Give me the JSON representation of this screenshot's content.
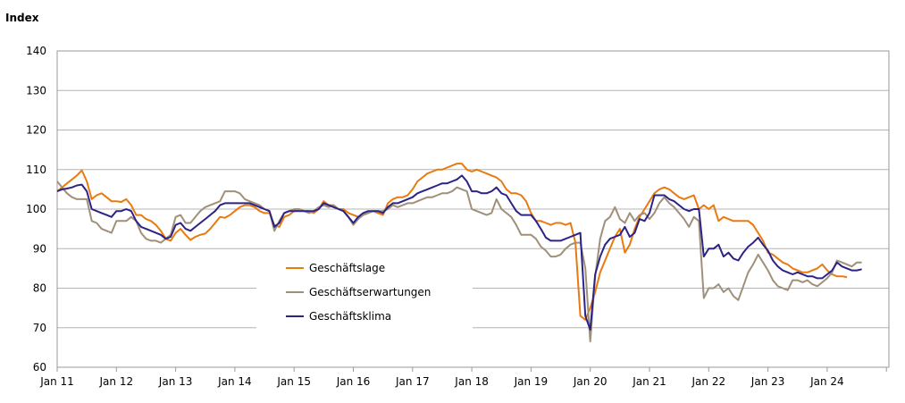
{
  "chart_data": {
    "type": "line",
    "unit_label": "Index",
    "ylim": [
      60,
      140
    ],
    "yticks": [
      60,
      70,
      80,
      90,
      100,
      110,
      120,
      130,
      140
    ],
    "x_tick_labels": [
      "Jan 11",
      "Jan 12",
      "Jan 13",
      "Jan 14",
      "Jan 15",
      "Jan 16",
      "Jan 17",
      "Jan 18",
      "Jan 19",
      "Jan 20",
      "Jan 21",
      "Jan 22",
      "Jan 23",
      "Jan 24"
    ],
    "x_start": "2011-01",
    "grid": true,
    "legend_position": "bottom-left",
    "series": [
      {
        "name": "Geschäftslage",
        "color": "#e97a10",
        "values": [
          104.5,
          105.5,
          106.5,
          107.5,
          108.5,
          109.8,
          107,
          102.5,
          103.5,
          104,
          103,
          102,
          102,
          101.8,
          102.5,
          101,
          98.5,
          98.5,
          97.5,
          97,
          96,
          94.5,
          92.5,
          92,
          94,
          95,
          93.5,
          92.2,
          93,
          93.5,
          93.8,
          95,
          96.5,
          98,
          97.8,
          98.5,
          99.5,
          100.5,
          101,
          101,
          100.5,
          99.5,
          99,
          99,
          96,
          95.5,
          98,
          98.5,
          99.5,
          100,
          99.5,
          99.5,
          99,
          100,
          102,
          101,
          101,
          100,
          100,
          99,
          98.5,
          98,
          98.5,
          99,
          99.5,
          99,
          98.5,
          101.5,
          102.5,
          103,
          103,
          103.5,
          105,
          107,
          108,
          109,
          109.5,
          110,
          110,
          110.5,
          111,
          111.5,
          111.5,
          110,
          109.5,
          110,
          109.5,
          109,
          108.5,
          108,
          107,
          105,
          104,
          104,
          103.5,
          102,
          99,
          97,
          97,
          96.5,
          96,
          96.5,
          96.5,
          96,
          96.5,
          91.5,
          73,
          72,
          75,
          79,
          84,
          87,
          90,
          93,
          95,
          89,
          91,
          95,
          98,
          100,
          102,
          104,
          105,
          105.5,
          105,
          104,
          103,
          102.5,
          103,
          103.5,
          100,
          101,
          100,
          101,
          97,
          98,
          97.5,
          97,
          97,
          97,
          97,
          96,
          94,
          92,
          89,
          88.5,
          87.5,
          86.5,
          86,
          85,
          84.5,
          84,
          84,
          84.5,
          85,
          86,
          84.5,
          83.5,
          83,
          83,
          82.8
        ]
      },
      {
        "name": "Geschäftserwartungen",
        "color": "#a09079",
        "values": [
          107,
          105.5,
          104,
          103,
          102.5,
          102.5,
          102.5,
          97,
          96.5,
          95,
          94.5,
          94,
          97,
          97,
          97,
          98,
          97,
          94,
          92.5,
          92,
          92,
          91.5,
          92.5,
          93.5,
          98,
          98.5,
          96.5,
          96.5,
          98,
          99.5,
          100.5,
          101,
          101.5,
          102,
          104.5,
          104.5,
          104.5,
          104,
          102.5,
          102,
          101.5,
          101,
          100,
          99.5,
          94.5,
          97,
          99,
          99.5,
          100,
          100,
          99.5,
          99,
          99.5,
          100.5,
          101,
          100.5,
          101,
          100,
          99.5,
          98,
          96,
          97.5,
          98.5,
          99,
          99.5,
          99.5,
          99.5,
          100,
          101,
          100.5,
          101,
          101.5,
          101.5,
          102,
          102.5,
          103,
          103,
          103.5,
          104,
          104,
          104.5,
          105.5,
          105,
          104.5,
          100,
          99.5,
          99,
          98.5,
          99,
          102.5,
          100,
          99,
          98,
          96,
          93.5,
          93.5,
          93.5,
          92.5,
          90.5,
          89.5,
          88,
          88,
          88.5,
          90,
          91,
          91.5,
          91.5,
          85,
          66.5,
          83,
          92.5,
          97,
          98,
          100.5,
          97.5,
          96.5,
          99,
          97,
          98.5,
          99,
          97.5,
          99,
          101.5,
          103,
          101.5,
          100.5,
          99,
          97.5,
          95.5,
          98,
          97,
          77.5,
          80,
          80,
          81,
          79,
          80,
          78,
          77,
          80.5,
          84,
          86,
          88.5,
          86.5,
          84.5,
          82,
          80.5,
          80,
          79.5,
          82,
          82,
          81.5,
          82,
          81,
          80.5,
          81.5,
          82.5,
          84,
          87,
          86.5,
          86,
          85.5,
          86.5,
          86.5
        ]
      },
      {
        "name": "Geschäftsklima",
        "color": "#2c2387",
        "values": [
          104.5,
          105,
          105.2,
          105.5,
          106,
          106.2,
          104.5,
          100,
          99.5,
          99,
          98.5,
          98,
          99.5,
          99.5,
          100,
          99.5,
          97,
          95.5,
          95,
          94.5,
          94,
          93.5,
          92.5,
          93,
          96,
          96.5,
          95,
          94.5,
          95.5,
          96.5,
          97.5,
          98.5,
          99.5,
          101,
          101.5,
          101.5,
          101.5,
          101.5,
          101.5,
          101.5,
          101,
          100.5,
          100,
          99.5,
          95.5,
          96.5,
          99,
          99.5,
          99.5,
          99.5,
          99.5,
          99.5,
          99.5,
          100,
          101.5,
          101,
          100.5,
          100,
          99.5,
          98,
          96.5,
          98,
          99,
          99.5,
          99.5,
          99.5,
          99,
          100.5,
          101.5,
          101.5,
          102,
          102.5,
          103,
          104,
          104.5,
          105,
          105.5,
          106,
          106.5,
          106.5,
          107,
          107.5,
          108.5,
          107,
          104.5,
          104.5,
          104,
          104,
          104.5,
          105.5,
          104,
          103.5,
          101.5,
          99.5,
          98.5,
          98.5,
          98.5,
          97,
          95,
          92.8,
          92,
          92,
          92,
          92.5,
          93,
          93.5,
          94,
          73,
          69.5,
          83.5,
          88,
          91,
          92.5,
          93,
          93.5,
          95.5,
          93,
          94,
          97.5,
          97,
          99,
          103.5,
          103.5,
          103.5,
          102.5,
          102,
          101,
          100,
          99.5,
          100,
          100,
          88,
          90,
          90,
          91,
          88,
          89,
          87.5,
          87,
          89,
          90.5,
          91.5,
          92.8,
          91,
          89.5,
          87,
          85.5,
          84.5,
          84,
          83.5,
          84,
          83.5,
          83,
          83,
          82.5,
          82.5,
          83.5,
          84.5,
          86.5,
          85.5,
          85,
          84.5,
          84.5,
          84.8
        ]
      }
    ]
  }
}
